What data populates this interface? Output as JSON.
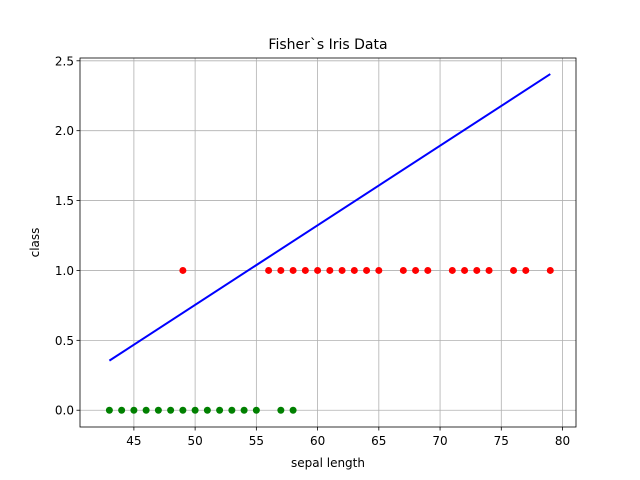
{
  "chart_data": {
    "type": "scatter",
    "title": "Fisher`s Iris Data",
    "xlabel": "sepal length",
    "ylabel": "class",
    "xlim": [
      40.6,
      81.1
    ],
    "ylim": [
      -0.12,
      2.52
    ],
    "xticks": [
      45,
      50,
      55,
      60,
      65,
      70,
      75,
      80
    ],
    "yticks": [
      0.0,
      0.5,
      1.0,
      1.5,
      2.0,
      2.5
    ],
    "xtick_labels": [
      "45",
      "50",
      "55",
      "60",
      "65",
      "70",
      "75",
      "80"
    ],
    "ytick_labels": [
      "0.0",
      "0.5",
      "1.0",
      "1.5",
      "2.0",
      "2.5"
    ],
    "grid": true,
    "series": [
      {
        "color": "#008000",
        "x": [
          43,
          44,
          45,
          46,
          47,
          48,
          49,
          50,
          51,
          52,
          53,
          54,
          55,
          57,
          58
        ],
        "y": [
          0,
          0,
          0,
          0,
          0,
          0,
          0,
          0,
          0,
          0,
          0,
          0,
          0,
          0,
          0
        ]
      },
      {
        "color": "#ff0000",
        "x": [
          49,
          56,
          57,
          58,
          59,
          60,
          61,
          62,
          63,
          64,
          65,
          67,
          68,
          69,
          71,
          72,
          73,
          74,
          76,
          77,
          79
        ],
        "y": [
          1,
          1,
          1,
          1,
          1,
          1,
          1,
          1,
          1,
          1,
          1,
          1,
          1,
          1,
          1,
          1,
          1,
          1,
          1,
          1,
          1
        ]
      },
      {
        "type": "line",
        "color": "#0000ff",
        "x": [
          43,
          79
        ],
        "y": [
          0.355,
          2.405
        ]
      }
    ]
  }
}
